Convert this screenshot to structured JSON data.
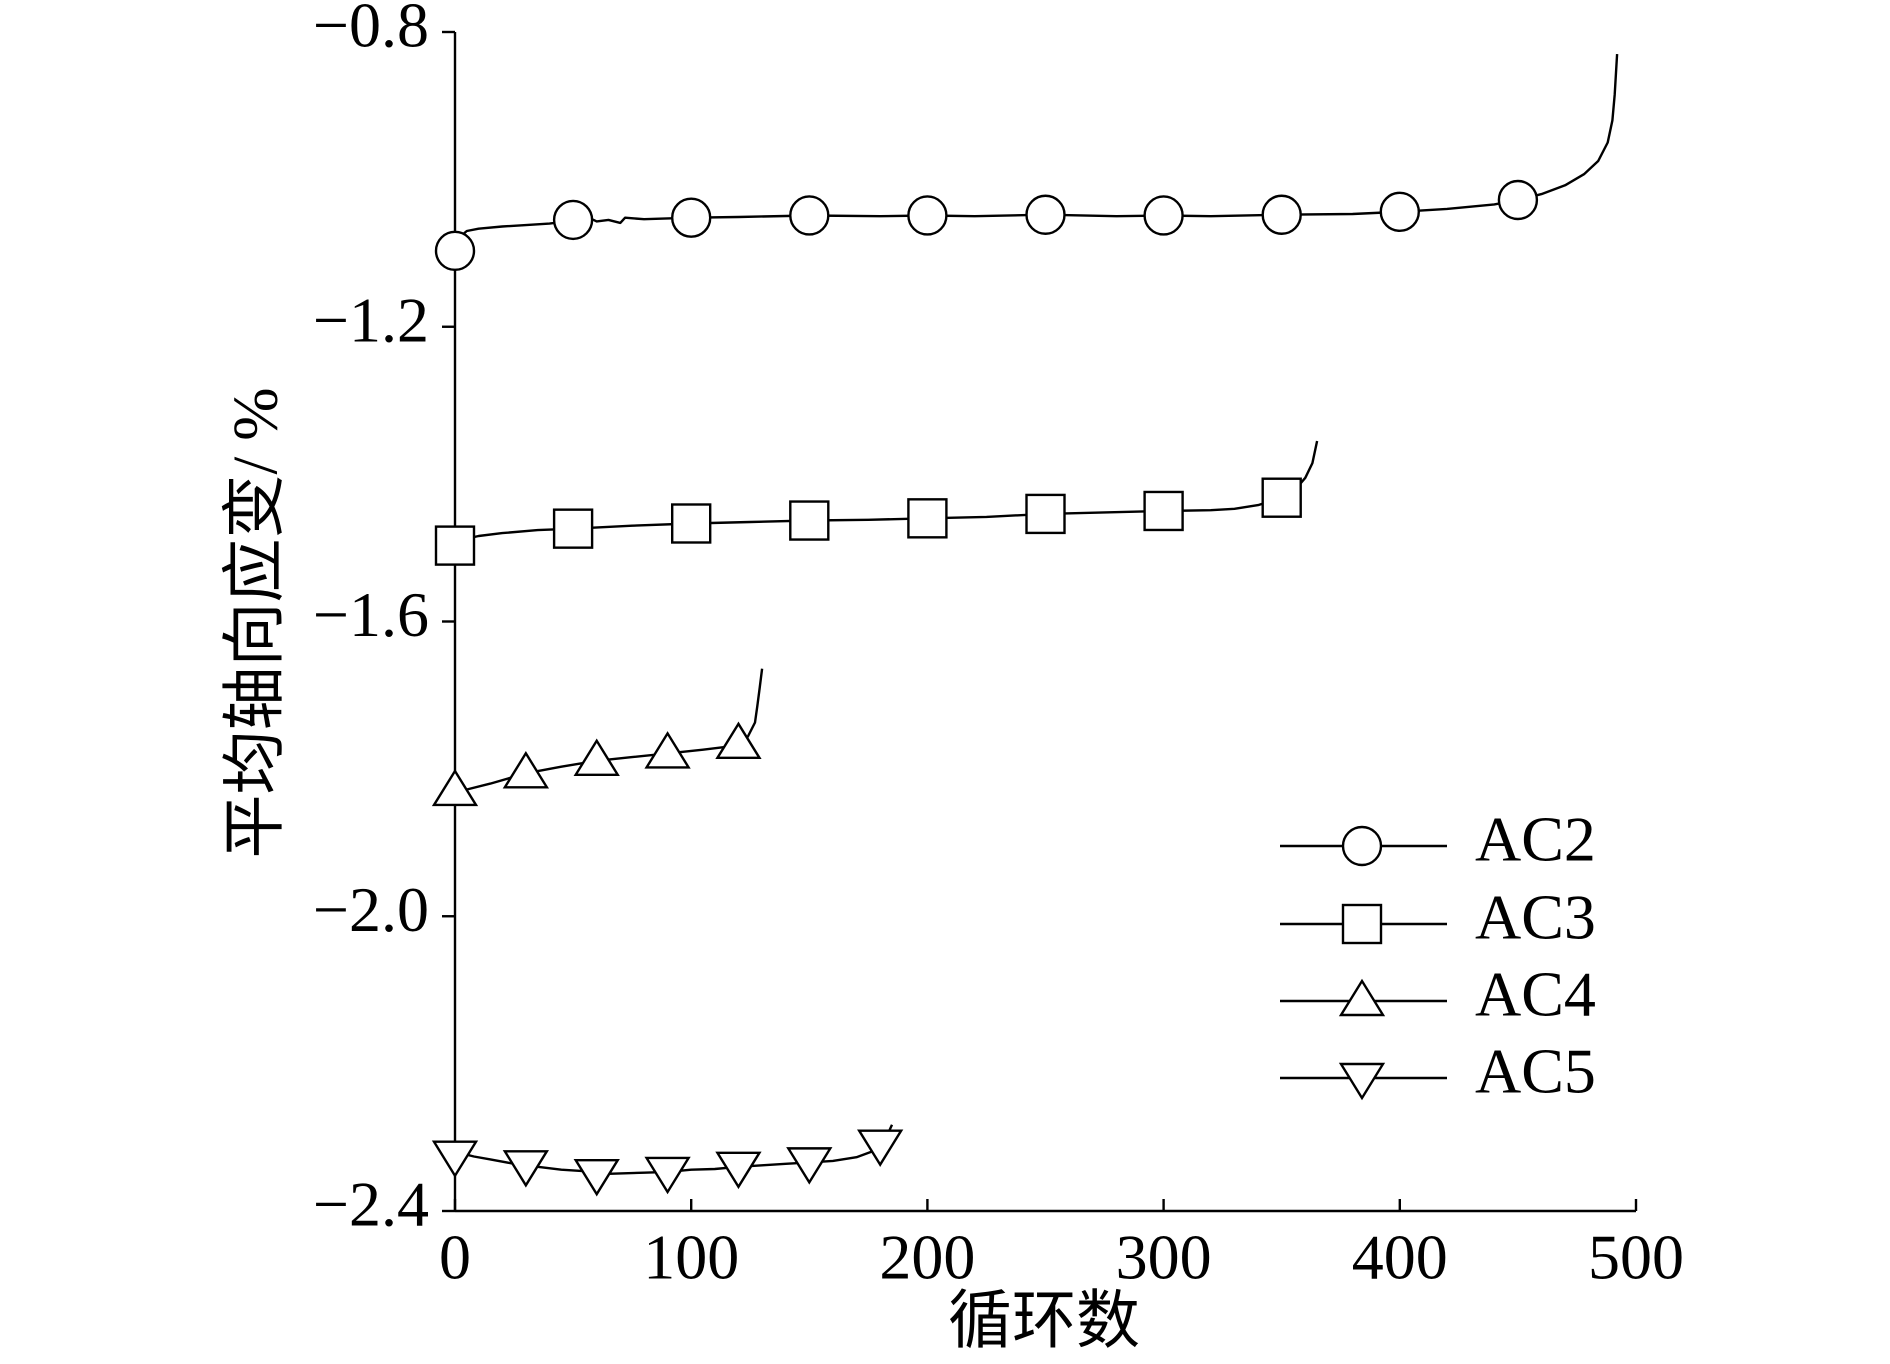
{
  "chart_data": {
    "type": "line",
    "xlabel": "循环数",
    "ylabel": "平均轴向应变/ %",
    "xlim": [
      0,
      500
    ],
    "ylim": [
      -2.4,
      -0.8
    ],
    "x_ticks": [
      0,
      100,
      200,
      300,
      400,
      500
    ],
    "x_tick_labels": [
      "0",
      "100",
      "200",
      "300",
      "400",
      "500"
    ],
    "y_ticks": [
      -0.8,
      -1.2,
      -1.6,
      -2.0,
      -2.4
    ],
    "y_tick_labels": [
      "−0.8",
      "−1.2",
      "−1.6",
      "−2.0",
      "−2.4"
    ],
    "grid": false,
    "legend": {
      "position": "lower-right"
    },
    "line_color": "#000000",
    "series": [
      {
        "name": "AC2",
        "marker": "circle",
        "marker_x": [
          0,
          50,
          100,
          150,
          200,
          250,
          300,
          350,
          400,
          450
        ],
        "x": [
          0,
          2,
          5,
          10,
          20,
          30,
          40,
          45,
          50,
          52,
          54,
          56,
          58,
          60,
          65,
          70,
          72,
          80,
          100,
          120,
          150,
          180,
          200,
          220,
          250,
          280,
          300,
          320,
          350,
          380,
          400,
          420,
          440,
          450,
          460,
          470,
          478,
          484,
          488,
          490,
          491,
          492
        ],
        "y": [
          -1.097,
          -1.078,
          -1.07,
          -1.067,
          -1.064,
          -1.062,
          -1.06,
          -1.058,
          -1.055,
          -1.063,
          -1.052,
          -1.061,
          -1.054,
          -1.057,
          -1.055,
          -1.059,
          -1.052,
          -1.054,
          -1.052,
          -1.051,
          -1.049,
          -1.05,
          -1.049,
          -1.05,
          -1.048,
          -1.05,
          -1.049,
          -1.05,
          -1.048,
          -1.047,
          -1.044,
          -1.04,
          -1.034,
          -1.028,
          -1.02,
          -1.008,
          -0.993,
          -0.975,
          -0.95,
          -0.92,
          -0.885,
          -0.83
        ]
      },
      {
        "name": "AC3",
        "marker": "square",
        "marker_x": [
          0,
          50,
          100,
          150,
          200,
          250,
          300,
          350
        ],
        "x": [
          0,
          3,
          10,
          20,
          35,
          50,
          75,
          100,
          125,
          150,
          175,
          200,
          225,
          250,
          275,
          300,
          320,
          330,
          340,
          350,
          356,
          360,
          363,
          365
        ],
        "y": [
          -1.497,
          -1.489,
          -1.484,
          -1.48,
          -1.476,
          -1.474,
          -1.47,
          -1.467,
          -1.465,
          -1.463,
          -1.462,
          -1.46,
          -1.458,
          -1.454,
          -1.452,
          -1.45,
          -1.449,
          -1.447,
          -1.442,
          -1.432,
          -1.42,
          -1.405,
          -1.385,
          -1.355
        ]
      },
      {
        "name": "AC4",
        "marker": "triangle-up",
        "marker_x": [
          0,
          30,
          60,
          90,
          120
        ],
        "x": [
          0,
          5,
          15,
          30,
          45,
          60,
          75,
          90,
          105,
          115,
          120,
          124,
          127,
          128,
          129,
          130
        ],
        "y": [
          -1.83,
          -1.828,
          -1.82,
          -1.806,
          -1.797,
          -1.789,
          -1.784,
          -1.779,
          -1.774,
          -1.77,
          -1.766,
          -1.756,
          -1.737,
          -1.715,
          -1.69,
          -1.664
        ]
      },
      {
        "name": "AC5",
        "marker": "triangle-down",
        "marker_x": [
          0,
          30,
          60,
          90,
          120,
          150,
          180
        ],
        "x": [
          0,
          3,
          8,
          15,
          25,
          35,
          45,
          55,
          60,
          70,
          80,
          90,
          100,
          110,
          120,
          130,
          140,
          150,
          160,
          170,
          176,
          180,
          183,
          185
        ],
        "y": [
          -2.325,
          -2.322,
          -2.326,
          -2.33,
          -2.336,
          -2.34,
          -2.344,
          -2.346,
          -2.35,
          -2.349,
          -2.348,
          -2.347,
          -2.344,
          -2.343,
          -2.34,
          -2.338,
          -2.336,
          -2.334,
          -2.332,
          -2.327,
          -2.32,
          -2.31,
          -2.297,
          -2.283
        ]
      }
    ]
  }
}
